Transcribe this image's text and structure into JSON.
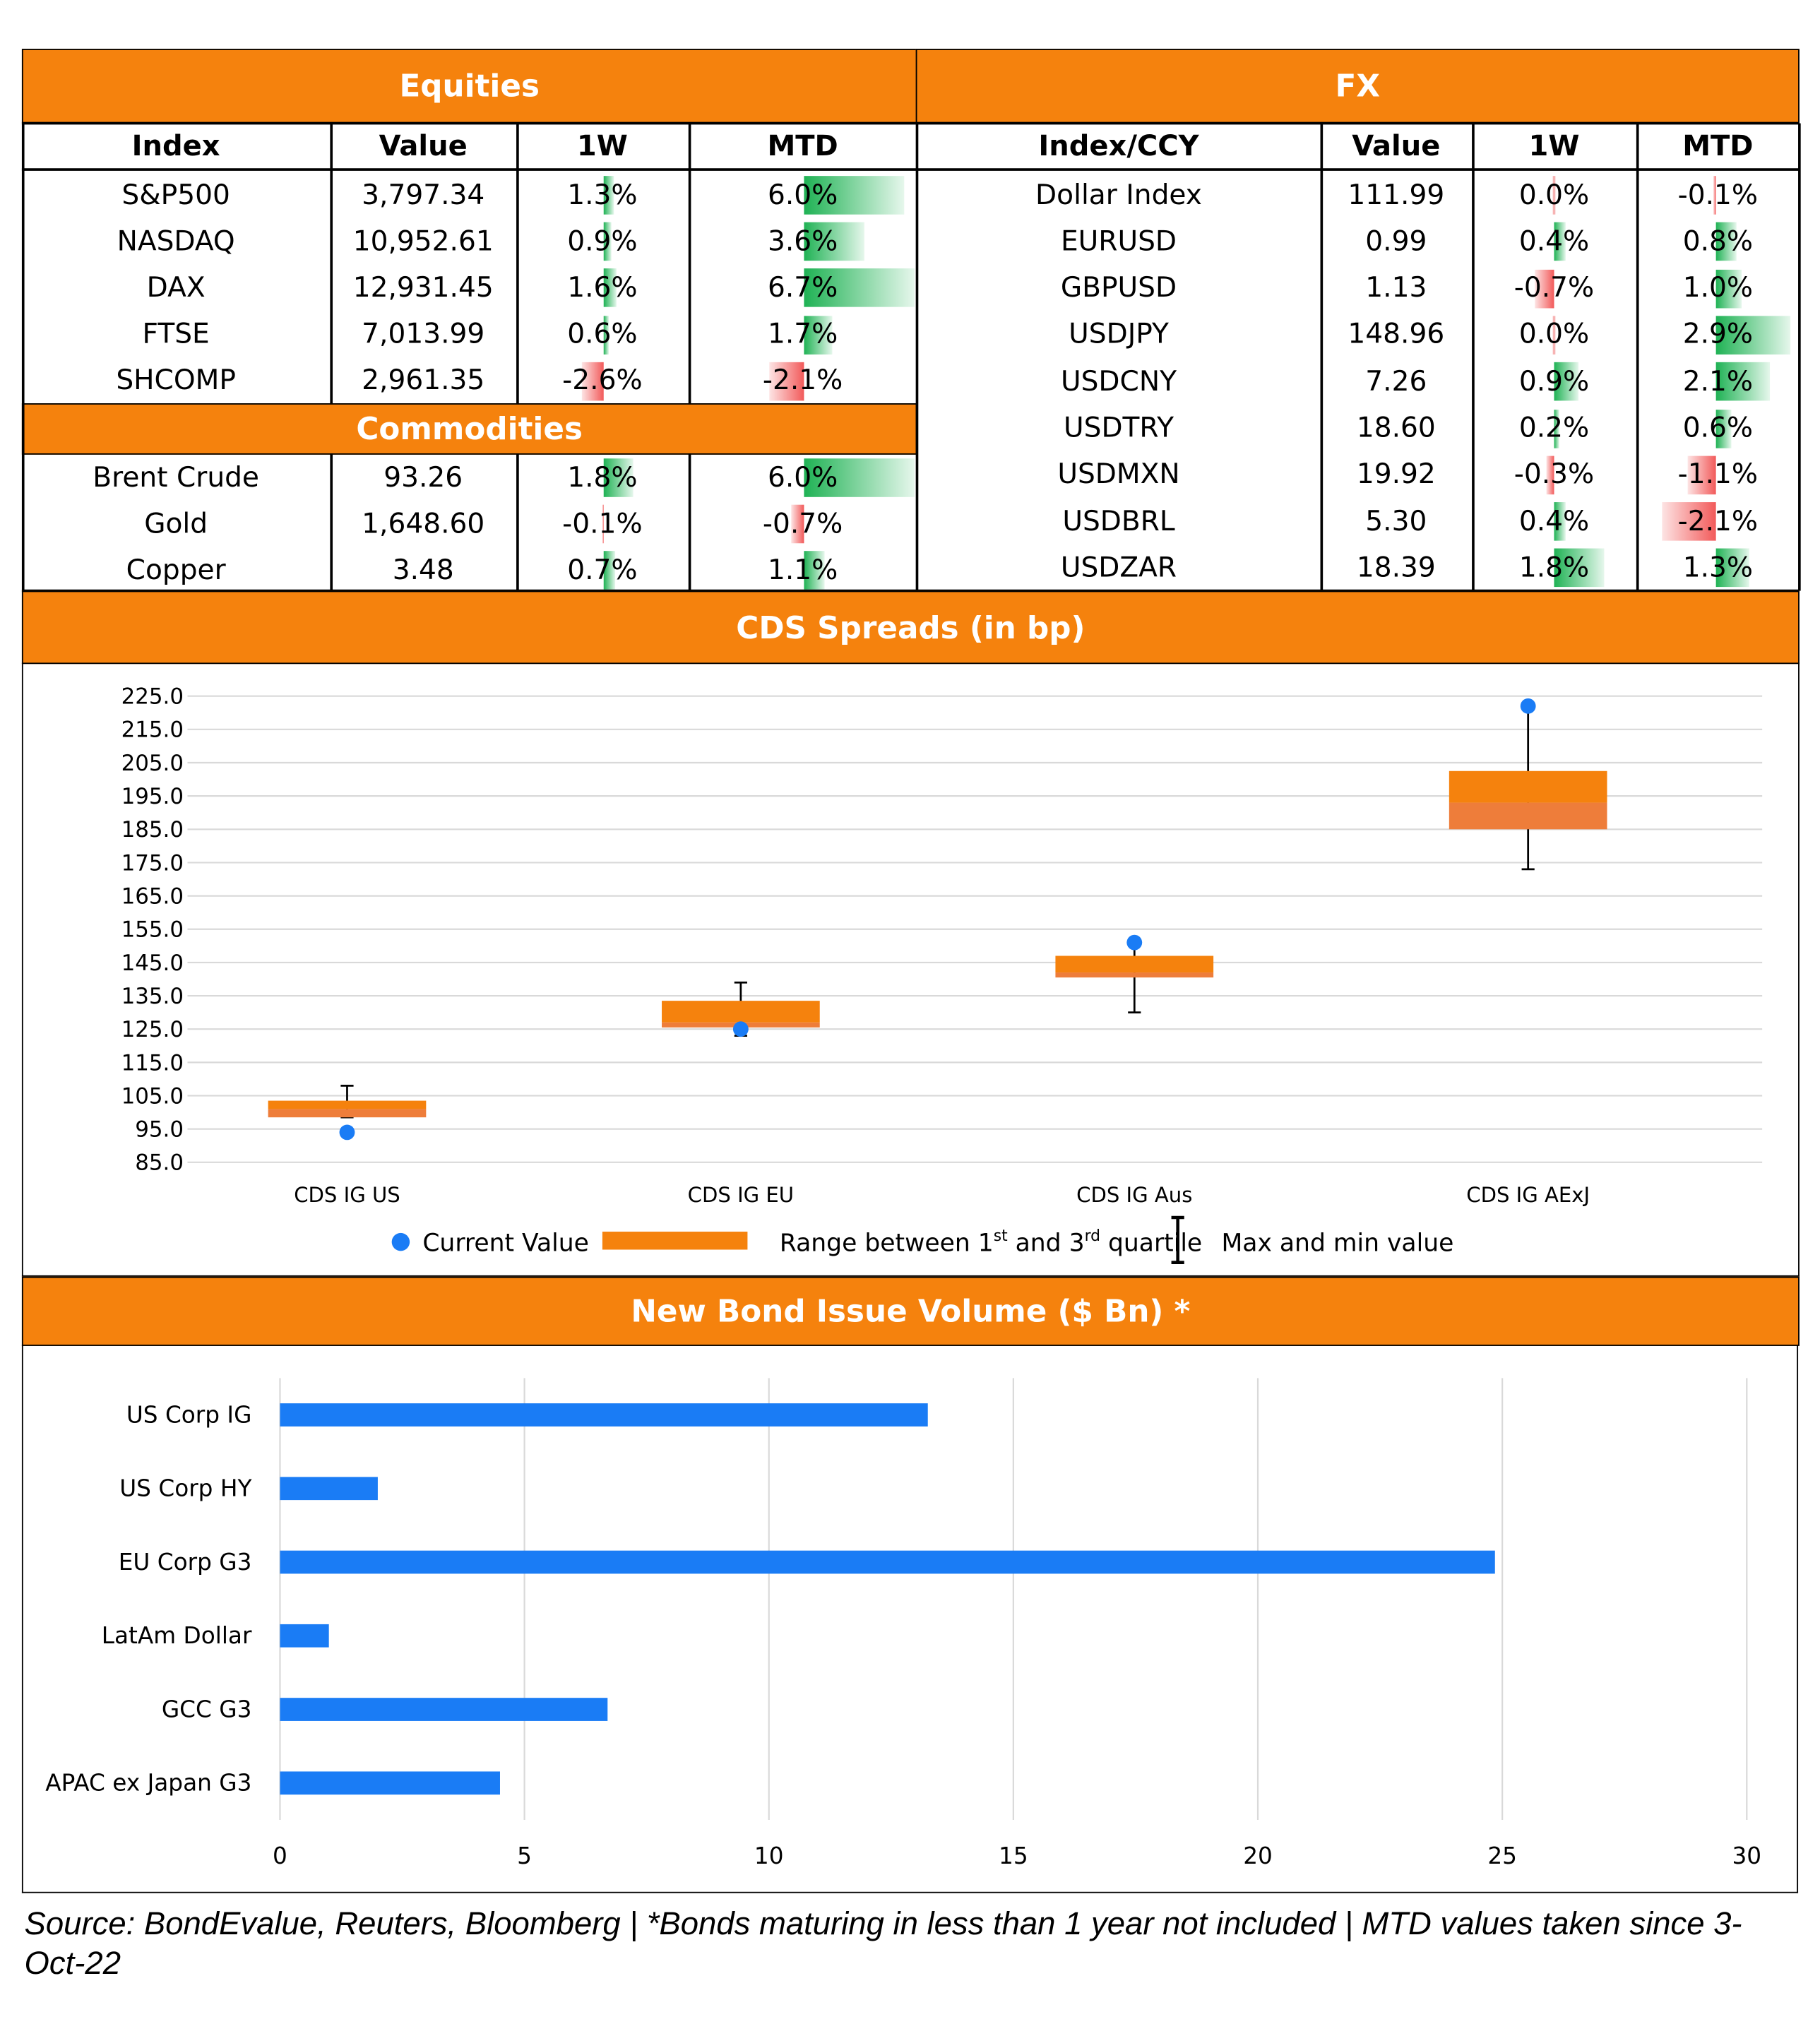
{
  "equities": {
    "title": "Equities",
    "headers": [
      "Index",
      "Value",
      "1W",
      "MTD"
    ],
    "rows": [
      {
        "name": "S&P500",
        "value": "3,797.34",
        "w1": "1.3%",
        "mtd": "6.0%",
        "w1_num": 1.3,
        "mtd_num": 6.0
      },
      {
        "name": "NASDAQ",
        "value": "10,952.61",
        "w1": "0.9%",
        "mtd": "3.6%",
        "w1_num": 0.9,
        "mtd_num": 3.6
      },
      {
        "name": "DAX",
        "value": "12,931.45",
        "w1": "1.6%",
        "mtd": "6.7%",
        "w1_num": 1.6,
        "mtd_num": 6.7
      },
      {
        "name": "FTSE",
        "value": "7,013.99",
        "w1": "0.6%",
        "mtd": "1.7%",
        "w1_num": 0.6,
        "mtd_num": 1.7
      },
      {
        "name": "SHCOMP",
        "value": "2,961.35",
        "w1": "-2.6%",
        "mtd": "-2.1%",
        "w1_num": -2.6,
        "mtd_num": -2.1
      }
    ]
  },
  "commodities": {
    "title": "Commodities",
    "rows": [
      {
        "name": "Brent Crude",
        "value": "93.26",
        "w1": "1.8%",
        "mtd": "6.0%",
        "w1_num": 1.8,
        "mtd_num": 6.0
      },
      {
        "name": "Gold",
        "value": "1,648.60",
        "w1": "-0.1%",
        "mtd": "-0.7%",
        "w1_num": -0.1,
        "mtd_num": -0.7
      },
      {
        "name": "Copper",
        "value": "3.48",
        "w1": "0.7%",
        "mtd": "1.1%",
        "w1_num": 0.7,
        "mtd_num": 1.1
      }
    ]
  },
  "fx": {
    "title": "FX",
    "headers": [
      "Index/CCY",
      "Value",
      "1W",
      "MTD"
    ],
    "rows": [
      {
        "name": "Dollar Index",
        "value": "111.99",
        "w1": "0.0%",
        "mtd": "-0.1%",
        "w1_num": 0.0,
        "mtd_num": -0.1
      },
      {
        "name": "EURUSD",
        "value": "0.99",
        "w1": "0.4%",
        "mtd": "0.8%",
        "w1_num": 0.4,
        "mtd_num": 0.8
      },
      {
        "name": "GBPUSD",
        "value": "1.13",
        "w1": "-0.7%",
        "mtd": "1.0%",
        "w1_num": -0.7,
        "mtd_num": 1.0
      },
      {
        "name": "USDJPY",
        "value": "148.96",
        "w1": "0.0%",
        "mtd": "2.9%",
        "w1_num": 0.0,
        "mtd_num": 2.9
      },
      {
        "name": "USDCNY",
        "value": "7.26",
        "w1": "0.9%",
        "mtd": "2.1%",
        "w1_num": 0.9,
        "mtd_num": 2.1
      },
      {
        "name": "USDTRY",
        "value": "18.60",
        "w1": "0.2%",
        "mtd": "0.6%",
        "w1_num": 0.2,
        "mtd_num": 0.6
      },
      {
        "name": "USDMXN",
        "value": "19.92",
        "w1": "-0.3%",
        "mtd": "-1.1%",
        "w1_num": -0.3,
        "mtd_num": -1.1
      },
      {
        "name": "USDBRL",
        "value": "5.30",
        "w1": "0.4%",
        "mtd": "-2.1%",
        "w1_num": 0.4,
        "mtd_num": -2.1
      },
      {
        "name": "USDZAR",
        "value": "18.39",
        "w1": "1.8%",
        "mtd": "1.3%",
        "w1_num": 1.8,
        "mtd_num": 1.3
      }
    ]
  },
  "colors": {
    "accent": "#f5820d",
    "positive": "#1fb254",
    "negative": "#f25a5a",
    "series_blue": "#1a7cf5",
    "box_orange": "#f5820d"
  },
  "chart_data": [
    {
      "type": "box",
      "title": "CDS Spreads (in bp)",
      "categories": [
        "CDS IG US",
        "CDS IG EU",
        "CDS IG Aus",
        "CDS IG AExJ"
      ],
      "series": [
        {
          "name": "Current Value",
          "values": [
            94.0,
            125.0,
            151.0,
            222.0
          ]
        },
        {
          "name": "Range between 1st and 3rd quartile",
          "q1": [
            98.5,
            125.5,
            140.5,
            185.0
          ],
          "median": [
            101.0,
            127.0,
            142.0,
            193.0
          ],
          "q3": [
            103.5,
            133.5,
            147.0,
            202.5
          ]
        },
        {
          "name": "Max and min value",
          "min": [
            98.5,
            123.0,
            130.0,
            173.0
          ],
          "max": [
            108.0,
            139.0,
            150.0,
            222.0
          ]
        }
      ],
      "y_ticks": [
        "225.0",
        "215.0",
        "205.0",
        "195.0",
        "185.0",
        "175.0",
        "165.0",
        "155.0",
        "145.0",
        "135.0",
        "125.0",
        "115.0",
        "105.0",
        "95.0",
        "85.0"
      ],
      "ylim": [
        85,
        225
      ],
      "grid": true,
      "legend": {
        "current": "Current Value",
        "range_prefix": "Range between 1",
        "range_sup1": "st",
        "range_mid": " and 3",
        "range_sup2": "rd",
        "range_suffix": " quartile",
        "maxmin": "Max and min value"
      },
      "legend_position": "bottom"
    },
    {
      "type": "bar",
      "orientation": "horizontal",
      "title": "New Bond Issue Volume ($ Bn) *",
      "categories": [
        "US Corp IG",
        "US Corp HY",
        "EU Corp G3",
        "LatAm Dollar",
        "GCC G3",
        "APAC ex Japan G3"
      ],
      "values": [
        13.25,
        2.0,
        24.85,
        1.0,
        6.7,
        4.5
      ],
      "x_ticks": [
        "0",
        "5",
        "10",
        "15",
        "20",
        "25",
        "30"
      ],
      "xlim": [
        0,
        30
      ],
      "grid": true
    }
  ],
  "footer": {
    "source": "Source: BondEvalue, Reuters, Bloomberg | *Bonds maturing in less than 1 year not included | MTD values taken since 3-Oct-22"
  }
}
